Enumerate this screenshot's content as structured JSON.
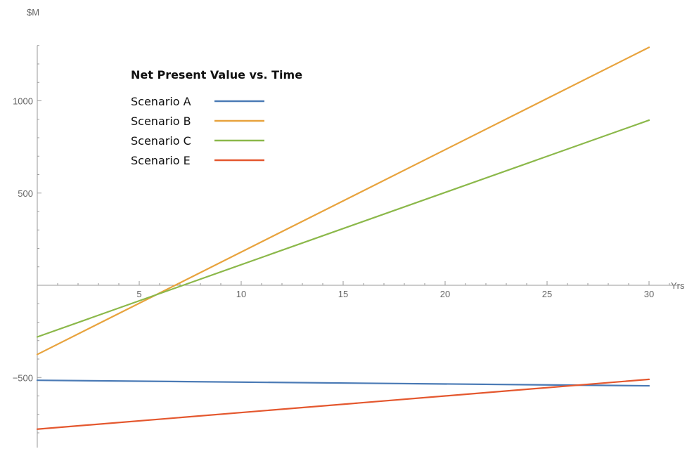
{
  "chart_data": {
    "type": "line",
    "title": "Net Present Value vs. Time",
    "xlabel": "Yrs",
    "ylabel": "$M",
    "xlim": [
      0,
      31.5
    ],
    "ylim": [
      -880,
      1300
    ],
    "x_ticks": [
      5,
      10,
      15,
      20,
      25,
      30
    ],
    "y_ticks": [
      -500,
      500,
      1000
    ],
    "legend_position": "top-left",
    "grid": false,
    "series": [
      {
        "name": "Scenario A",
        "color": "#4a7ab5",
        "x": [
          0,
          30
        ],
        "y": [
          -515,
          -545
        ]
      },
      {
        "name": "Scenario B",
        "color": "#e8a33d",
        "x": [
          0,
          30
        ],
        "y": [
          -375,
          1290
        ]
      },
      {
        "name": "Scenario C",
        "color": "#8bb84a",
        "x": [
          0,
          30
        ],
        "y": [
          -280,
          895
        ]
      },
      {
        "name": "Scenario E",
        "color": "#e4572e",
        "x": [
          0,
          30
        ],
        "y": [
          -780,
          -510
        ]
      }
    ]
  }
}
